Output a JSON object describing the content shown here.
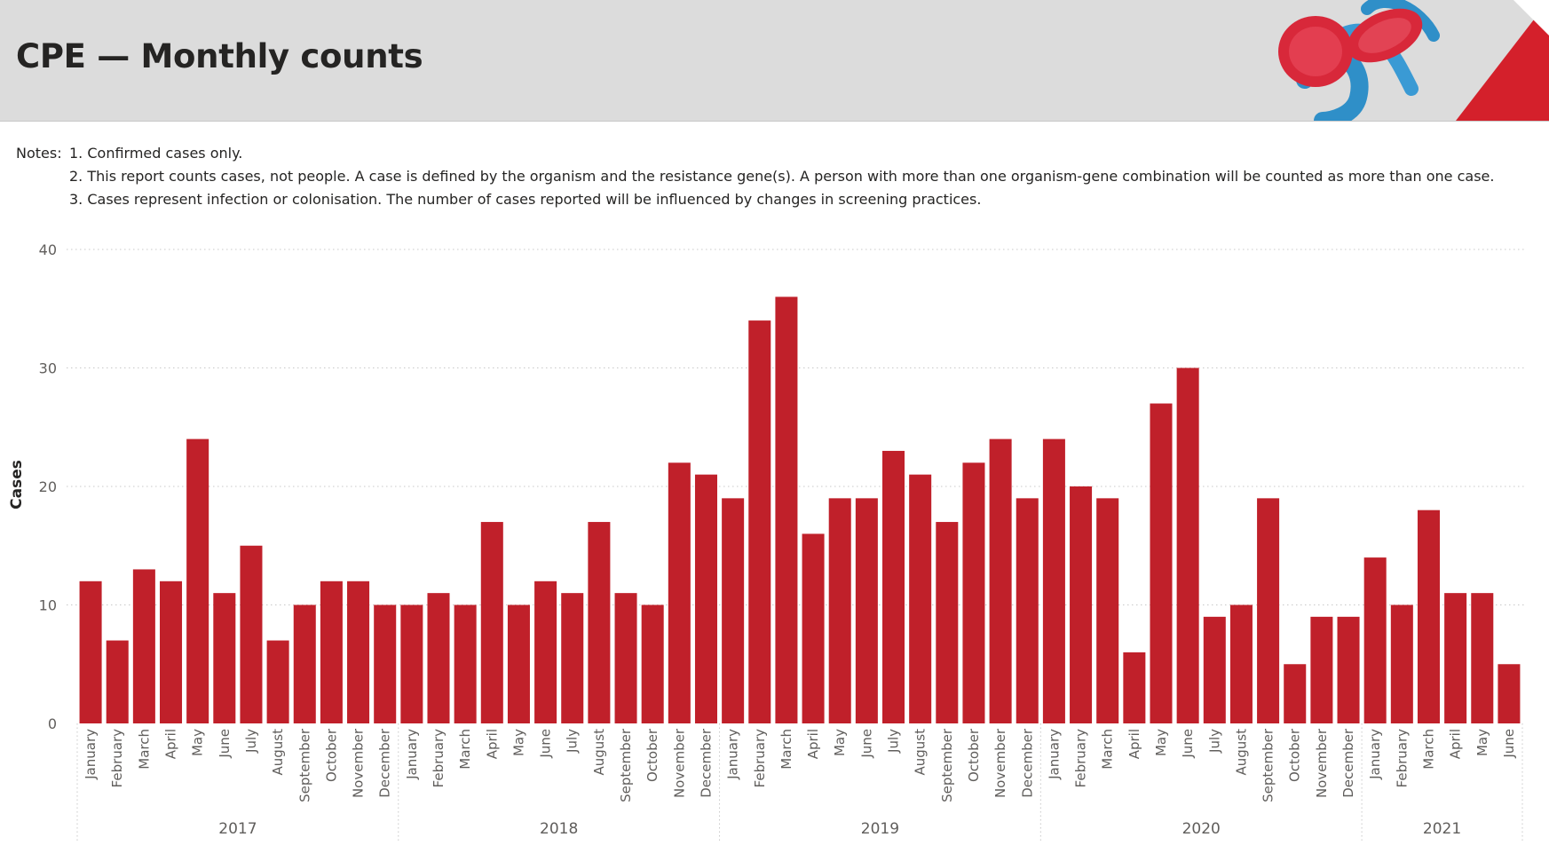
{
  "header": {
    "title": "CPE — Monthly counts"
  },
  "notes": {
    "label": "Notes:",
    "items": [
      "1. Confirmed cases only.",
      "2. This report counts cases, not people. A case is defined by the organism and the resistance gene(s). A person with more than one organism-gene combination will be counted as more than one case.",
      "3. Cases represent infection or colonisation. The number of cases reported will be influenced by changes in screening practices."
    ]
  },
  "colors": {
    "bar": "#c0202a",
    "header_bg": "#dcdcdc",
    "accent": "#d4202b"
  },
  "chart_data": {
    "type": "bar",
    "ylabel": "Cases",
    "ylim": [
      0,
      40
    ],
    "yticks": [
      0,
      10,
      20,
      30,
      40
    ],
    "grid": true,
    "years": [
      {
        "label": "2017",
        "months": [
          "January",
          "February",
          "March",
          "April",
          "May",
          "June",
          "July",
          "August",
          "September",
          "October",
          "November",
          "December"
        ],
        "values": [
          12,
          7,
          13,
          12,
          24,
          11,
          15,
          7,
          10,
          12,
          12,
          10
        ]
      },
      {
        "label": "2018",
        "months": [
          "January",
          "February",
          "March",
          "April",
          "May",
          "June",
          "July",
          "August",
          "September",
          "October",
          "November",
          "December"
        ],
        "values": [
          10,
          11,
          10,
          17,
          10,
          12,
          11,
          17,
          11,
          10,
          22,
          21
        ]
      },
      {
        "label": "2019",
        "months": [
          "January",
          "February",
          "March",
          "April",
          "May",
          "June",
          "July",
          "August",
          "September",
          "October",
          "November",
          "December"
        ],
        "values": [
          19,
          34,
          36,
          16,
          19,
          19,
          23,
          21,
          17,
          22,
          24,
          19
        ]
      },
      {
        "label": "2020",
        "months": [
          "January",
          "February",
          "March",
          "April",
          "May",
          "June",
          "July",
          "August",
          "September",
          "October",
          "November",
          "December"
        ],
        "values": [
          24,
          20,
          19,
          6,
          27,
          30,
          9,
          10,
          19,
          5,
          9,
          9
        ]
      },
      {
        "label": "2021",
        "months": [
          "January",
          "February",
          "March",
          "April",
          "May",
          "June"
        ],
        "values": [
          14,
          10,
          18,
          11,
          11,
          5
        ]
      }
    ]
  }
}
